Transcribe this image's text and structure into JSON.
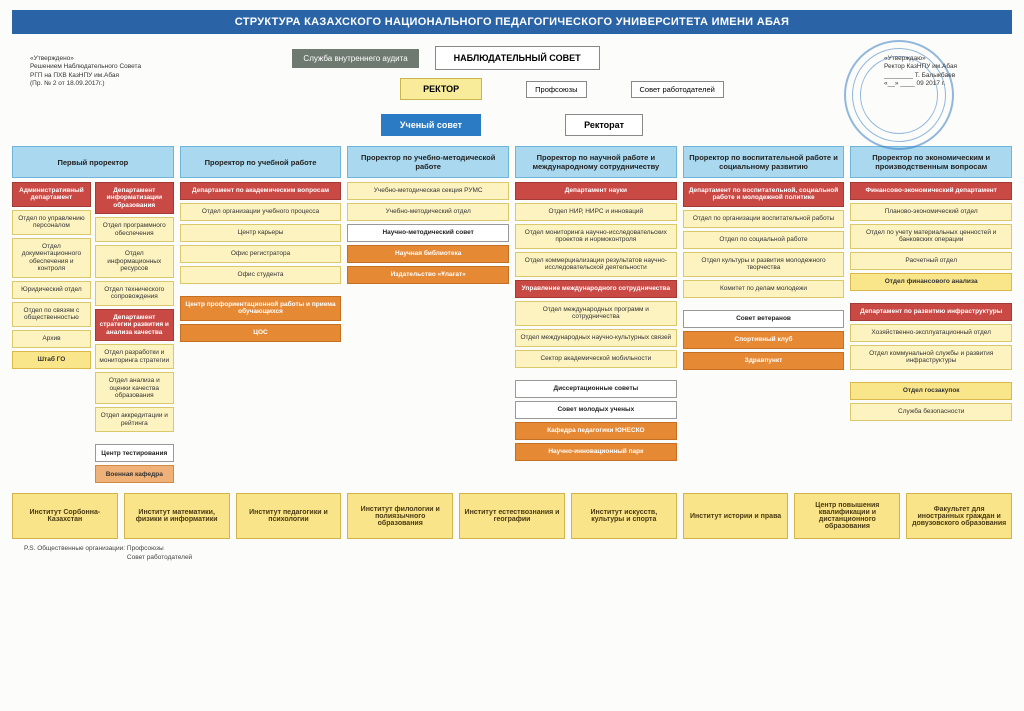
{
  "type": "org-chart",
  "page_title": "СТРУКТУРА КАЗАХСКОГО НАЦИОНАЛЬНОГО ПЕДАГОГИЧЕСКОГО УНИВЕРСИТЕТА ИМЕНИ АБАЯ",
  "colors": {
    "title_bg": "#2a64a7",
    "title_fg": "#ffffff",
    "head_bg": "#a9d8ef",
    "head_border": "#6fb5d9",
    "red_bg": "#c94a45",
    "red_fg": "#ffffff",
    "yellow_bg": "#fcf3c0",
    "yellow_border": "#d9c96a",
    "yellow2_bg": "#f9e68a",
    "orange_bg": "#e68934",
    "orange_fg": "#ffffff",
    "orange_lt_bg": "#f0b178",
    "council_blue_bg": "#2a7bc4",
    "audit_bg": "#6e7a70",
    "inst_bg": "#f9e48a",
    "inst_border": "#d0b34a",
    "page_bg": "#fcfcfa",
    "connector": "#888888"
  },
  "approval_left": {
    "l1": "«Утверждено»",
    "l2": "Решением Наблюдательного Совета",
    "l3": "РГП на ПХВ КазНПУ им.Абая",
    "l4": "(Пр. № 2 от 18.09.2017г.)"
  },
  "approval_right": {
    "l1": "«Утверждаю»",
    "l2": "Ректор КазНПУ им.Абая",
    "l3": "________ Т. Балыкбаев",
    "l4": "«__» ____ 09   2017 г."
  },
  "top": {
    "audit": "Служба внутреннего аудита",
    "supervisory": "НАБЛЮДАТЕЛЬНЫЙ СОВЕТ",
    "rector": "РЕКТОР",
    "unions": "Профсоюзы",
    "employers": "Совет работодателей",
    "academic_council": "Ученый совет",
    "rectorate": "Ректорат"
  },
  "columns": [
    {
      "head": "Первый проректор",
      "sub": [
        {
          "items": [
            {
              "t": "red",
              "txt": "Административный департамент"
            },
            {
              "t": "yellow",
              "txt": "Отдел по управлению персоналом"
            },
            {
              "t": "yellow",
              "txt": "Отдел документационного обеспечения и контроля"
            },
            {
              "t": "yellow",
              "txt": "Юридический отдел"
            },
            {
              "t": "yellow",
              "txt": "Отдел по связям с общественностью"
            },
            {
              "t": "yellow",
              "txt": "Архив"
            },
            {
              "t": "yellow2",
              "txt": "Штаб ГО"
            }
          ]
        },
        {
          "items": [
            {
              "t": "red",
              "txt": "Департамент информатизации образования"
            },
            {
              "t": "yellow",
              "txt": "Отдел программного обеспечения"
            },
            {
              "t": "yellow",
              "txt": "Отдел информационных ресурсов"
            },
            {
              "t": "yellow",
              "txt": "Отдел технического сопровождения"
            },
            {
              "t": "red",
              "txt": "Департамент стратегии развития и анализа качества"
            },
            {
              "t": "yellow",
              "txt": "Отдел разработки и мониторинга стратегии"
            },
            {
              "t": "yellow",
              "txt": "Отдел анализа и оценки качества образования"
            },
            {
              "t": "yellow",
              "txt": "Отдел аккредитации и рейтинга"
            },
            {
              "t": "gap"
            },
            {
              "t": "white",
              "txt": "Центр тестирования"
            },
            {
              "t": "orange-lt",
              "txt": "Военная кафедра"
            }
          ]
        }
      ]
    },
    {
      "head": "Проректор по учебной работе",
      "items": [
        {
          "t": "red",
          "txt": "Департамент по академическим вопросам"
        },
        {
          "t": "yellow",
          "txt": "Отдел организации учебного процесса"
        },
        {
          "t": "yellow",
          "txt": "Центр карьеры"
        },
        {
          "t": "yellow",
          "txt": "Офис регистратора"
        },
        {
          "t": "yellow",
          "txt": "Офис студента"
        },
        {
          "t": "gap"
        },
        {
          "t": "orange",
          "txt": "Центр профориентационной работы и приема обучающихся"
        },
        {
          "t": "orange",
          "txt": "ЦОС"
        }
      ]
    },
    {
      "head": "Проректор по учебно-методической работе",
      "items": [
        {
          "t": "yellow",
          "txt": "Учебно-методическая секция РУМС"
        },
        {
          "t": "yellow",
          "txt": "Учебно-методический отдел"
        },
        {
          "t": "white",
          "txt": "Научно-методический совет"
        },
        {
          "t": "orange",
          "txt": "Научная библиотека"
        },
        {
          "t": "orange",
          "txt": "Издательство «Ұлағат»"
        }
      ]
    },
    {
      "head": "Проректор по научной работе и международному сотрудничеству",
      "items": [
        {
          "t": "red",
          "txt": "Департамент науки"
        },
        {
          "t": "yellow",
          "txt": "Отдел НИР, НИРС и инноваций"
        },
        {
          "t": "yellow",
          "txt": "Отдел мониторинга научно-исследовательских проектов и нормоконтроля"
        },
        {
          "t": "yellow",
          "txt": "Отдел коммерциализации результатов научно-исследовательской деятельности"
        },
        {
          "t": "red",
          "txt": "Управление международного сотрудничества"
        },
        {
          "t": "yellow",
          "txt": "Отдел международных программ и сотрудничества"
        },
        {
          "t": "yellow",
          "txt": "Отдел международных научно-культурных связей"
        },
        {
          "t": "yellow",
          "txt": "Сектор академической мобильности"
        },
        {
          "t": "gap"
        },
        {
          "t": "white",
          "txt": "Диссертационные советы"
        },
        {
          "t": "white",
          "txt": "Совет молодых ученых"
        },
        {
          "t": "orange",
          "txt": "Кафедра педагогики ЮНЕСКО"
        },
        {
          "t": "orange",
          "txt": "Научно-инновационный парк"
        }
      ]
    },
    {
      "head": "Проректор по воспитательной работе и социальному развитию",
      "items": [
        {
          "t": "red",
          "txt": "Департамент по воспитательной, социальной работе и молодежной политике"
        },
        {
          "t": "yellow",
          "txt": "Отдел по организации воспитательной работы"
        },
        {
          "t": "yellow",
          "txt": "Отдел по социальной работе"
        },
        {
          "t": "yellow",
          "txt": "Отдел культуры и развития молодежного творчества"
        },
        {
          "t": "yellow",
          "txt": "Комитет по делам молодежи"
        },
        {
          "t": "gap"
        },
        {
          "t": "white",
          "txt": "Совет ветеранов"
        },
        {
          "t": "orange",
          "txt": "Спортивный клуб"
        },
        {
          "t": "orange",
          "txt": "Здравпункт"
        }
      ]
    },
    {
      "head": "Проректор по экономическим и производственным вопросам",
      "items": [
        {
          "t": "red",
          "txt": "Финансово-экономический департамент"
        },
        {
          "t": "yellow",
          "txt": "Планово-экономический отдел"
        },
        {
          "t": "yellow",
          "txt": "Отдел по учету материальных ценностей и банковских операции"
        },
        {
          "t": "yellow",
          "txt": "Расчетный отдел"
        },
        {
          "t": "yellow2",
          "txt": "Отдел финансового анализа"
        },
        {
          "t": "gap"
        },
        {
          "t": "red",
          "txt": "Департамент по развитию инфраструктуры"
        },
        {
          "t": "yellow",
          "txt": "Хозяйственно-эксплуатационный отдел"
        },
        {
          "t": "yellow",
          "txt": "Отдел коммунальной службы и развития инфраструктуры"
        },
        {
          "t": "gap"
        },
        {
          "t": "yellow2",
          "txt": "Отдел госзакупок"
        },
        {
          "t": "yellow",
          "txt": "Служба безопасности"
        }
      ]
    }
  ],
  "institutes": [
    "Институт Сорбонна-Казахстан",
    "Институт математики, физики и информатики",
    "Институт педагогики и психологии",
    "Институт филологии и полиязычного образования",
    "Институт естествознания и географии",
    "Институт искусств, культуры и спорта",
    "Институт истории и права",
    "Центр повышения квалификации и дистанционного образования",
    "Факультет для иностранных граждан и довузовского образования"
  ],
  "footnote": {
    "prefix": "P.S. Общественные организации:",
    "l1": "Профсоюзы",
    "l2": "Совет работодателей"
  }
}
